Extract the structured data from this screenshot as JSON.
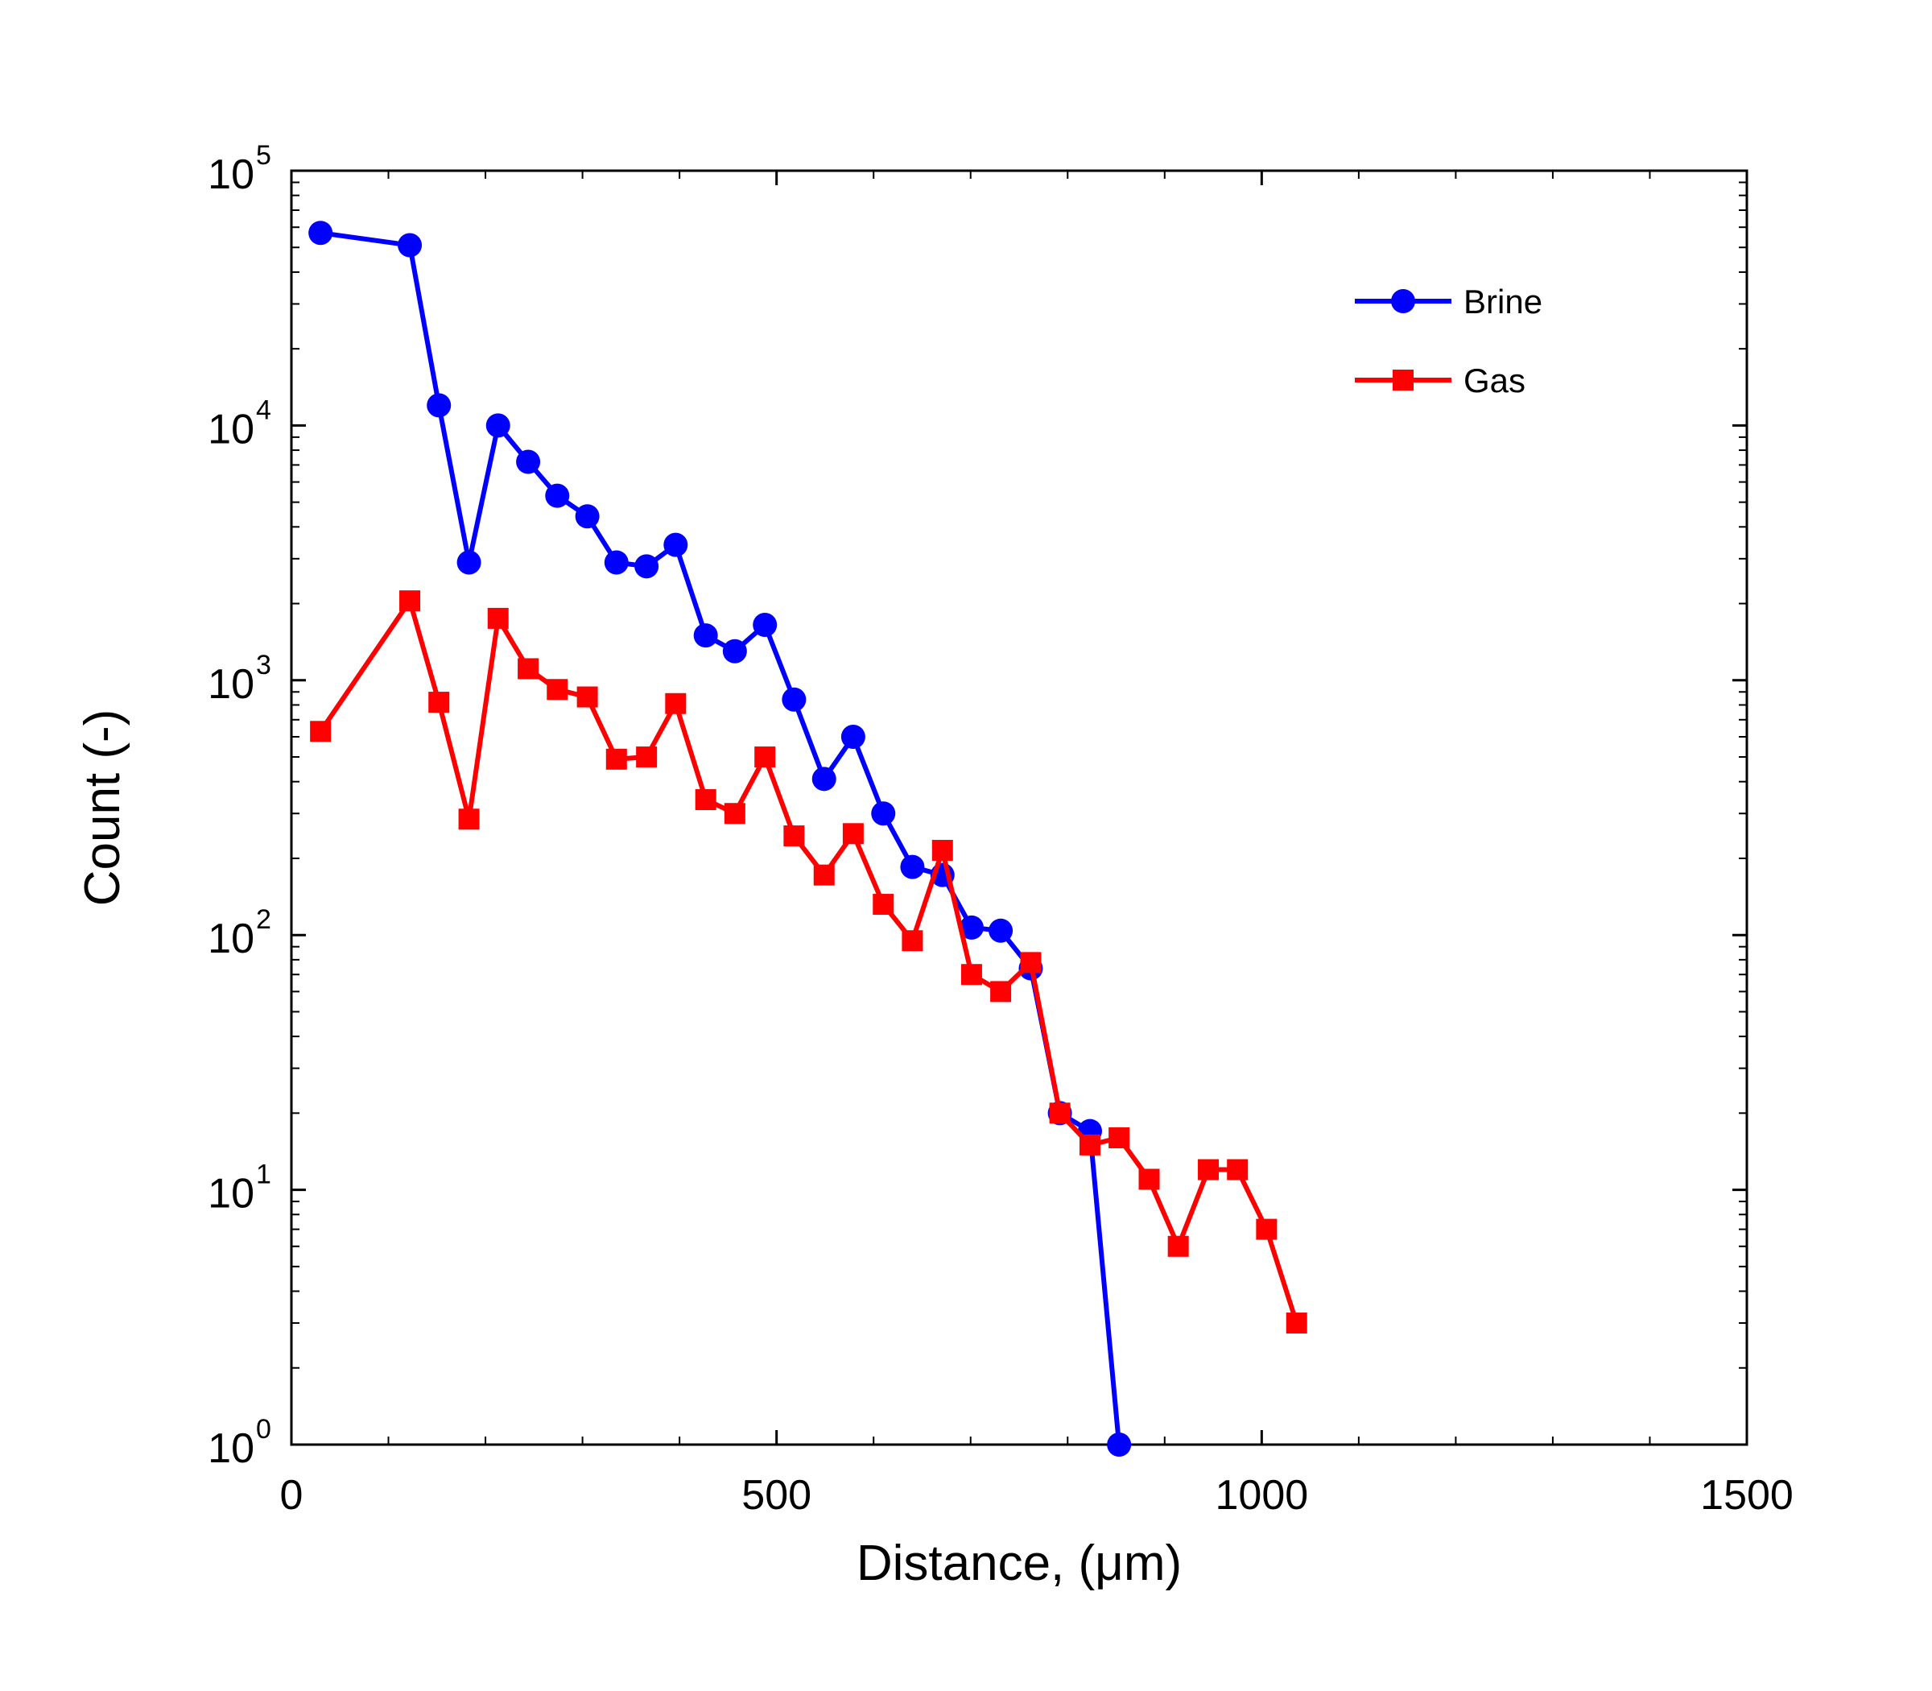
{
  "chart_data": {
    "type": "line",
    "title": "",
    "xlabel": "Distance, (μm)",
    "ylabel": "Count (-)",
    "xlim": [
      0,
      1500
    ],
    "ylim": [
      1,
      100000
    ],
    "yscale": "log",
    "xticks": [
      0,
      500,
      1000,
      1500
    ],
    "xtick_labels": [
      "0",
      "500",
      "1000",
      "1500"
    ],
    "yticks": [
      1,
      10,
      100,
      1000,
      10000,
      100000
    ],
    "ytick_bases": [
      "10",
      "10",
      "10",
      "10",
      "10",
      "10"
    ],
    "ytick_exponents": [
      "0",
      "1",
      "2",
      "3",
      "4",
      "5"
    ],
    "grid": false,
    "legend_position": "top-right",
    "series": [
      {
        "name": "Brine",
        "color": "#0000ff",
        "marker": "circle",
        "x": [
          30,
          122,
          152,
          183,
          213,
          244,
          274,
          305,
          335,
          366,
          396,
          427,
          457,
          488,
          518,
          549,
          579,
          610,
          640,
          671,
          701,
          731,
          762,
          792,
          823,
          853
        ],
        "y": [
          57000,
          51000,
          12000,
          2900,
          10000,
          7200,
          5300,
          4400,
          2900,
          2800,
          3400,
          1500,
          1300,
          1650,
          840,
          410,
          600,
          300,
          185,
          172,
          107,
          104,
          74,
          20,
          17,
          1
        ]
      },
      {
        "name": "Gas",
        "color": "#ff0000",
        "marker": "square",
        "x": [
          30,
          122,
          152,
          183,
          213,
          244,
          274,
          305,
          335,
          366,
          396,
          427,
          457,
          488,
          518,
          549,
          579,
          610,
          640,
          671,
          701,
          731,
          762,
          792,
          823,
          853,
          884,
          914,
          945,
          975,
          1005,
          1036
        ],
        "y": [
          630,
          2050,
          820,
          285,
          1750,
          1110,
          920,
          860,
          490,
          500,
          810,
          340,
          300,
          500,
          245,
          172,
          250,
          132,
          95,
          215,
          70,
          60,
          78,
          20,
          15,
          16,
          11,
          6,
          12,
          12,
          7,
          3
        ]
      }
    ]
  }
}
